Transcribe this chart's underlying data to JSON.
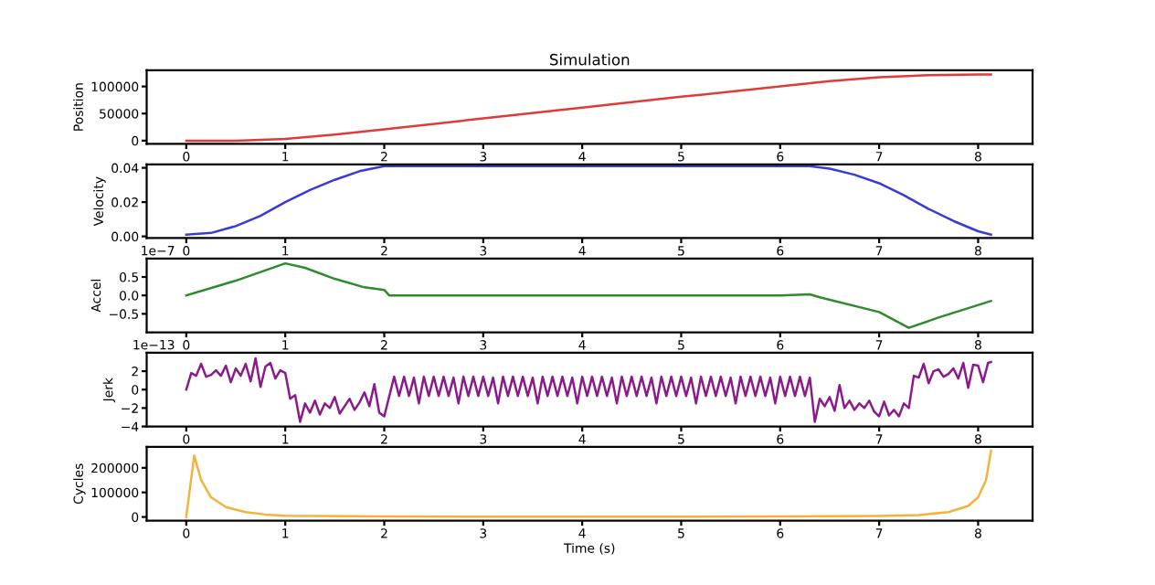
{
  "chart_data": [
    {
      "type": "line",
      "title": "Simulation",
      "ylabel": "Position",
      "xlim": [
        -0.4,
        8.55
      ],
      "xticks": [
        0,
        1,
        2,
        3,
        4,
        5,
        6,
        7,
        8
      ],
      "ylim": [
        -6000,
        130000
      ],
      "yticks": [
        0,
        50000,
        100000
      ],
      "grid": false,
      "series": [
        {
          "color": "#e03a3a",
          "x": [
            0,
            0.5,
            1,
            1.5,
            2,
            3,
            4,
            5,
            6,
            6.5,
            7,
            7.5,
            8,
            8.13
          ],
          "values": [
            0,
            0,
            3000,
            11000,
            21000,
            41000,
            61000,
            81000,
            100000,
            110000,
            117000,
            121000,
            122000,
            122000
          ]
        }
      ]
    },
    {
      "type": "line",
      "ylabel": "Velocity",
      "xlim": [
        -0.4,
        8.55
      ],
      "xticks": [
        0,
        1,
        2,
        3,
        4,
        5,
        6,
        7,
        8
      ],
      "ylim": [
        -0.001,
        0.042
      ],
      "yticks": [
        {
          "value": 0,
          "label": "0.00"
        },
        {
          "value": 0.02,
          "label": "0.02"
        },
        {
          "value": 0.04,
          "label": "0.04"
        }
      ],
      "grid": false,
      "series": [
        {
          "color": "#3a3ad6",
          "x": [
            0,
            0.25,
            0.5,
            0.75,
            1,
            1.25,
            1.5,
            1.75,
            2,
            6.3,
            6.5,
            6.75,
            7,
            7.25,
            7.5,
            7.75,
            8,
            8.13
          ],
          "values": [
            0.001,
            0.002,
            0.006,
            0.012,
            0.02,
            0.027,
            0.033,
            0.038,
            0.041,
            0.041,
            0.0395,
            0.036,
            0.031,
            0.024,
            0.016,
            0.009,
            0.003,
            0.001
          ]
        }
      ]
    },
    {
      "type": "line",
      "ylabel": "Accel",
      "annotations": [
        "1e−7"
      ],
      "xlim": [
        -0.4,
        8.55
      ],
      "xticks": [
        0,
        1,
        2,
        3,
        4,
        5,
        6,
        7,
        8
      ],
      "ylim": [
        -1.0,
        1.0
      ],
      "yticks": [
        {
          "value": -0.5,
          "label": "−0.5"
        },
        {
          "value": 0,
          "label": "0.0"
        },
        {
          "value": 0.5,
          "label": "0.5"
        }
      ],
      "grid": false,
      "series": [
        {
          "color": "#2e8b2e",
          "x": [
            0,
            0.5,
            1,
            1.2,
            1.5,
            1.8,
            2,
            2.05,
            3,
            4,
            5,
            6,
            6.3,
            6.4,
            7,
            7.3,
            7.6,
            8.13
          ],
          "values": [
            0,
            0.4,
            0.87,
            0.75,
            0.45,
            0.22,
            0.15,
            0,
            0,
            0,
            0,
            0,
            0.03,
            -0.05,
            -0.45,
            -0.88,
            -0.6,
            -0.15
          ]
        }
      ]
    },
    {
      "type": "line",
      "ylabel": "Jerk",
      "annotations": [
        "1e−13"
      ],
      "xlim": [
        -0.4,
        8.55
      ],
      "xticks": [
        0,
        1,
        2,
        3,
        4,
        5,
        6,
        7,
        8
      ],
      "ylim": [
        -4,
        4
      ],
      "yticks": [
        {
          "value": -4,
          "label": "−4"
        },
        {
          "value": -2,
          "label": "−2"
        },
        {
          "value": 0,
          "label": "0"
        },
        {
          "value": 2,
          "label": "2"
        }
      ],
      "grid": false,
      "series": [
        {
          "color": "#8b1a8b",
          "x": [
            0,
            0.05,
            0.1,
            0.15,
            0.2,
            0.25,
            0.3,
            0.35,
            0.4,
            0.45,
            0.5,
            0.55,
            0.6,
            0.65,
            0.7,
            0.75,
            0.8,
            0.85,
            0.9,
            0.95,
            1.0,
            1.05,
            1.1,
            1.15,
            1.2,
            1.25,
            1.3,
            1.35,
            1.4,
            1.45,
            1.5,
            1.55,
            1.6,
            1.65,
            1.7,
            1.75,
            1.8,
            1.85,
            1.9,
            1.95,
            2.0,
            2.1,
            2.15,
            2.2,
            2.25,
            2.3,
            2.35,
            2.4,
            2.45,
            2.5,
            2.55,
            2.6,
            2.65,
            2.7,
            2.75,
            2.8,
            2.85,
            2.9,
            2.95,
            3.0,
            3.05,
            3.1,
            3.15,
            3.2,
            3.25,
            3.3,
            3.35,
            3.4,
            3.45,
            3.5,
            3.55,
            3.6,
            3.65,
            3.7,
            3.75,
            3.8,
            3.85,
            3.9,
            3.95,
            4.0,
            4.05,
            4.1,
            4.15,
            4.2,
            4.25,
            4.3,
            4.35,
            4.4,
            4.45,
            4.5,
            4.55,
            4.6,
            4.65,
            4.7,
            4.75,
            4.8,
            4.85,
            4.9,
            4.95,
            5.0,
            5.05,
            5.1,
            5.15,
            5.2,
            5.25,
            5.3,
            5.35,
            5.4,
            5.45,
            5.5,
            5.55,
            5.6,
            5.65,
            5.7,
            5.75,
            5.8,
            5.85,
            5.9,
            5.95,
            6.0,
            6.05,
            6.1,
            6.15,
            6.2,
            6.25,
            6.3,
            6.35,
            6.4,
            6.45,
            6.5,
            6.55,
            6.6,
            6.65,
            6.7,
            6.75,
            6.8,
            6.85,
            6.9,
            6.95,
            7.0,
            7.05,
            7.1,
            7.15,
            7.2,
            7.25,
            7.3,
            7.35,
            7.4,
            7.45,
            7.5,
            7.55,
            7.6,
            7.65,
            7.7,
            7.75,
            7.8,
            7.85,
            7.9,
            7.95,
            8.0,
            8.05,
            8.1,
            8.13
          ],
          "values": [
            0,
            1.8,
            1.5,
            2.8,
            1.4,
            1.6,
            2.1,
            1.5,
            2.6,
            0.8,
            2.3,
            1.5,
            2.8,
            0.9,
            3.4,
            0.3,
            2.5,
            2.9,
            1.2,
            2.1,
            1.8,
            -1.0,
            -0.6,
            -3.5,
            -1.5,
            -2.5,
            -1.2,
            -2.7,
            -1.5,
            -2.0,
            -0.8,
            -2.6,
            -1.8,
            -1.0,
            -2.2,
            -1.4,
            -0.3,
            -1.8,
            0.6,
            -2.5,
            -2.9,
            1.4,
            -0.7,
            1.4,
            -0.7,
            1.3,
            -1.5,
            1.4,
            -0.7,
            1.4,
            -0.7,
            1.4,
            -0.7,
            1.3,
            -1.5,
            1.4,
            -0.7,
            1.4,
            -0.7,
            1.4,
            -0.7,
            1.3,
            -1.5,
            1.4,
            -0.7,
            1.4,
            -0.7,
            1.4,
            -0.7,
            1.3,
            -1.5,
            1.4,
            -0.7,
            1.4,
            -0.7,
            1.4,
            -0.7,
            1.3,
            -1.5,
            1.4,
            -0.7,
            1.4,
            -0.7,
            1.4,
            -0.7,
            1.3,
            -1.5,
            1.4,
            -0.7,
            1.4,
            -0.7,
            1.4,
            -0.7,
            1.3,
            -1.5,
            1.4,
            -0.7,
            1.4,
            -0.7,
            1.4,
            -0.7,
            1.3,
            -1.5,
            1.4,
            -0.7,
            1.4,
            -0.7,
            1.4,
            -0.7,
            1.3,
            -1.5,
            1.4,
            -0.7,
            1.4,
            -0.7,
            1.4,
            -0.7,
            1.3,
            -1.5,
            1.4,
            -0.7,
            1.4,
            -0.7,
            1.4,
            -0.7,
            1.3,
            -3.5,
            -1.0,
            -1.8,
            -0.8,
            -2.3,
            0.5,
            -2.0,
            -1.2,
            -2.2,
            -1.5,
            -2.0,
            -1.2,
            -2.4,
            -2.9,
            -1.3,
            -2.8,
            -2.2,
            -2.9,
            -1.5,
            -2.0,
            1.5,
            1.3,
            2.8,
            0.7,
            2.0,
            2.2,
            1.4,
            1.7,
            2.3,
            1.2,
            2.9,
            0.2,
            2.7,
            2.6,
            0.8,
            2.9,
            3.0
          ]
        }
      ]
    },
    {
      "type": "line",
      "ylabel": "Cycles",
      "xlabel": "Time (s)",
      "xlim": [
        -0.4,
        8.55
      ],
      "xticks": [
        0,
        1,
        2,
        3,
        4,
        5,
        6,
        7,
        8
      ],
      "ylim": [
        -15000,
        285000
      ],
      "yticks": [
        0,
        100000,
        200000
      ],
      "grid": false,
      "series": [
        {
          "color": "#f2b33d",
          "x": [
            0,
            0.08,
            0.15,
            0.25,
            0.4,
            0.6,
            0.8,
            1,
            2,
            4,
            6,
            7,
            7.4,
            7.7,
            7.9,
            8.0,
            8.08,
            8.13
          ],
          "values": [
            0,
            250000,
            150000,
            80000,
            40000,
            20000,
            10000,
            5000,
            2000,
            1000,
            2000,
            4000,
            8000,
            20000,
            45000,
            80000,
            150000,
            270000
          ]
        }
      ]
    }
  ]
}
